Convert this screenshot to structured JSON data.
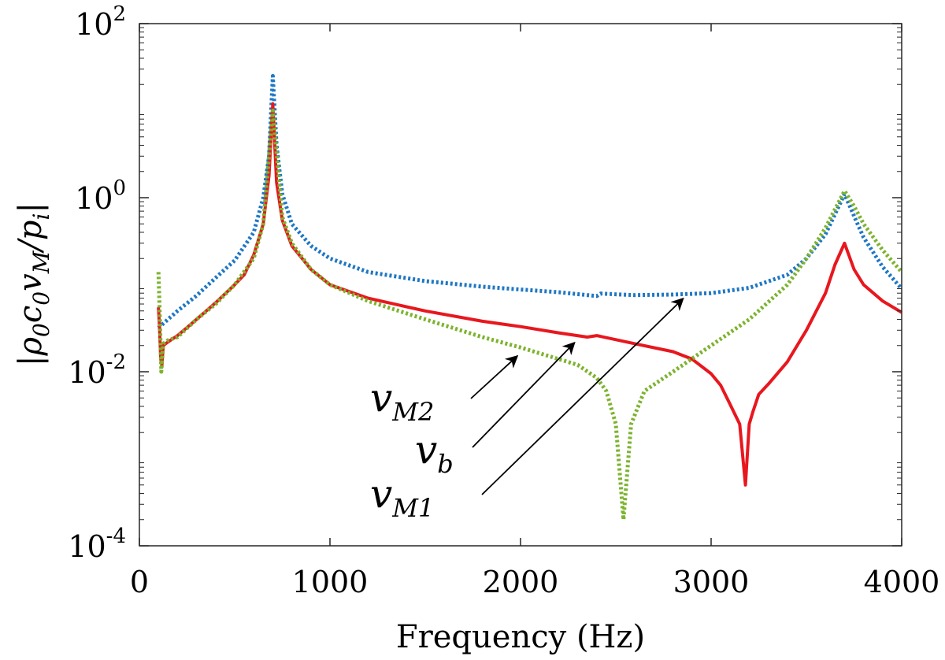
{
  "chart_data": {
    "type": "line",
    "title": "",
    "xlabel": "Frequency (Hz)",
    "ylabel": "|ρ0c0vM/pi|",
    "y_scale": "log",
    "xlim": [
      0,
      4000
    ],
    "ylim": [
      0.0001,
      100
    ],
    "grid": false,
    "legend": "none",
    "x_ticks": [
      {
        "value": 0,
        "label": "0"
      },
      {
        "value": 1000,
        "label": "1000"
      },
      {
        "value": 2000,
        "label": "2000"
      },
      {
        "value": 3000,
        "label": "3000"
      },
      {
        "value": 4000,
        "label": "4000"
      }
    ],
    "y_ticks": [
      {
        "value": 0.0001,
        "base": "10",
        "exp": "-4"
      },
      {
        "value": 0.01,
        "base": "10",
        "exp": "-2"
      },
      {
        "value": 1,
        "base": "10",
        "exp": "0"
      },
      {
        "value": 100,
        "base": "10",
        "exp": "2"
      }
    ],
    "series": [
      {
        "name": "vM1",
        "color": "#1f77c4",
        "style": "dotted",
        "points": [
          [
            100,
            0.032
          ],
          [
            200,
            0.05
          ],
          [
            300,
            0.075
          ],
          [
            400,
            0.12
          ],
          [
            500,
            0.19
          ],
          [
            600,
            0.4
          ],
          [
            650,
            1.0
          ],
          [
            680,
            3.0
          ],
          [
            700,
            25
          ],
          [
            720,
            4.0
          ],
          [
            750,
            1.1
          ],
          [
            800,
            0.5
          ],
          [
            900,
            0.28
          ],
          [
            1000,
            0.2
          ],
          [
            1200,
            0.14
          ],
          [
            1500,
            0.11
          ],
          [
            1800,
            0.095
          ],
          [
            2000,
            0.088
          ],
          [
            2200,
            0.082
          ],
          [
            2400,
            0.074
          ],
          [
            2420,
            0.079
          ],
          [
            2600,
            0.076
          ],
          [
            2800,
            0.077
          ],
          [
            3000,
            0.08
          ],
          [
            3200,
            0.092
          ],
          [
            3400,
            0.13
          ],
          [
            3500,
            0.2
          ],
          [
            3600,
            0.38
          ],
          [
            3700,
            1.1
          ],
          [
            3760,
            0.55
          ],
          [
            3800,
            0.35
          ],
          [
            3900,
            0.16
          ],
          [
            4000,
            0.09
          ]
        ]
      },
      {
        "name": "vb",
        "color": "#e8171e",
        "style": "solid",
        "points": [
          [
            100,
            0.055
          ],
          [
            105,
            0.035
          ],
          [
            112,
            0.014
          ],
          [
            118,
            0.012
          ],
          [
            125,
            0.02
          ],
          [
            150,
            0.022
          ],
          [
            200,
            0.026
          ],
          [
            300,
            0.04
          ],
          [
            400,
            0.062
          ],
          [
            500,
            0.1
          ],
          [
            550,
            0.13
          ],
          [
            600,
            0.22
          ],
          [
            650,
            0.5
          ],
          [
            680,
            1.8
          ],
          [
            700,
            12
          ],
          [
            720,
            1.5
          ],
          [
            750,
            0.55
          ],
          [
            800,
            0.28
          ],
          [
            900,
            0.15
          ],
          [
            1000,
            0.1
          ],
          [
            1200,
            0.07
          ],
          [
            1500,
            0.05
          ],
          [
            1800,
            0.038
          ],
          [
            2000,
            0.033
          ],
          [
            2200,
            0.028
          ],
          [
            2350,
            0.025
          ],
          [
            2400,
            0.026
          ],
          [
            2600,
            0.021
          ],
          [
            2800,
            0.017
          ],
          [
            2900,
            0.014
          ],
          [
            3000,
            0.0095
          ],
          [
            3050,
            0.007
          ],
          [
            3100,
            0.0042
          ],
          [
            3150,
            0.0025
          ],
          [
            3180,
            0.0005
          ],
          [
            3200,
            0.0025
          ],
          [
            3220,
            0.0035
          ],
          [
            3250,
            0.0055
          ],
          [
            3300,
            0.0072
          ],
          [
            3400,
            0.013
          ],
          [
            3500,
            0.03
          ],
          [
            3600,
            0.08
          ],
          [
            3650,
            0.17
          ],
          [
            3700,
            0.3
          ],
          [
            3750,
            0.15
          ],
          [
            3800,
            0.1
          ],
          [
            3900,
            0.065
          ],
          [
            4000,
            0.048
          ]
        ]
      },
      {
        "name": "vM2",
        "color": "#7cb32e",
        "style": "dotted",
        "points": [
          [
            100,
            0.14
          ],
          [
            108,
            0.04
          ],
          [
            115,
            0.01
          ],
          [
            125,
            0.021
          ],
          [
            150,
            0.023
          ],
          [
            200,
            0.025
          ],
          [
            300,
            0.04
          ],
          [
            400,
            0.06
          ],
          [
            500,
            0.1
          ],
          [
            600,
            0.2
          ],
          [
            650,
            0.5
          ],
          [
            700,
            10
          ],
          [
            750,
            0.6
          ],
          [
            800,
            0.3
          ],
          [
            900,
            0.15
          ],
          [
            1000,
            0.1
          ],
          [
            1200,
            0.065
          ],
          [
            1500,
            0.04
          ],
          [
            1800,
            0.025
          ],
          [
            2000,
            0.019
          ],
          [
            2200,
            0.014
          ],
          [
            2300,
            0.012
          ],
          [
            2400,
            0.0085
          ],
          [
            2450,
            0.006
          ],
          [
            2500,
            0.0025
          ],
          [
            2540,
            0.0002
          ],
          [
            2580,
            0.0025
          ],
          [
            2650,
            0.006
          ],
          [
            2800,
            0.01
          ],
          [
            3000,
            0.02
          ],
          [
            3200,
            0.04
          ],
          [
            3400,
            0.1
          ],
          [
            3500,
            0.2
          ],
          [
            3600,
            0.45
          ],
          [
            3700,
            1.2
          ],
          [
            3750,
            0.8
          ],
          [
            3800,
            0.5
          ],
          [
            3900,
            0.25
          ],
          [
            4000,
            0.14
          ]
        ]
      }
    ],
    "annotations": [
      {
        "name": "vM2",
        "base": "v",
        "sub": "M2",
        "target": [
          2000,
          0.0165
        ],
        "series_color_ref": "vM2"
      },
      {
        "name": "vb",
        "base": "v",
        "sub": "b",
        "target": [
          2300,
          0.0235
        ],
        "series_color_ref": "vb"
      },
      {
        "name": "vM1",
        "base": "v",
        "sub": "M1",
        "target": [
          2870,
          0.0755
        ],
        "series_color_ref": "vM1"
      }
    ]
  }
}
